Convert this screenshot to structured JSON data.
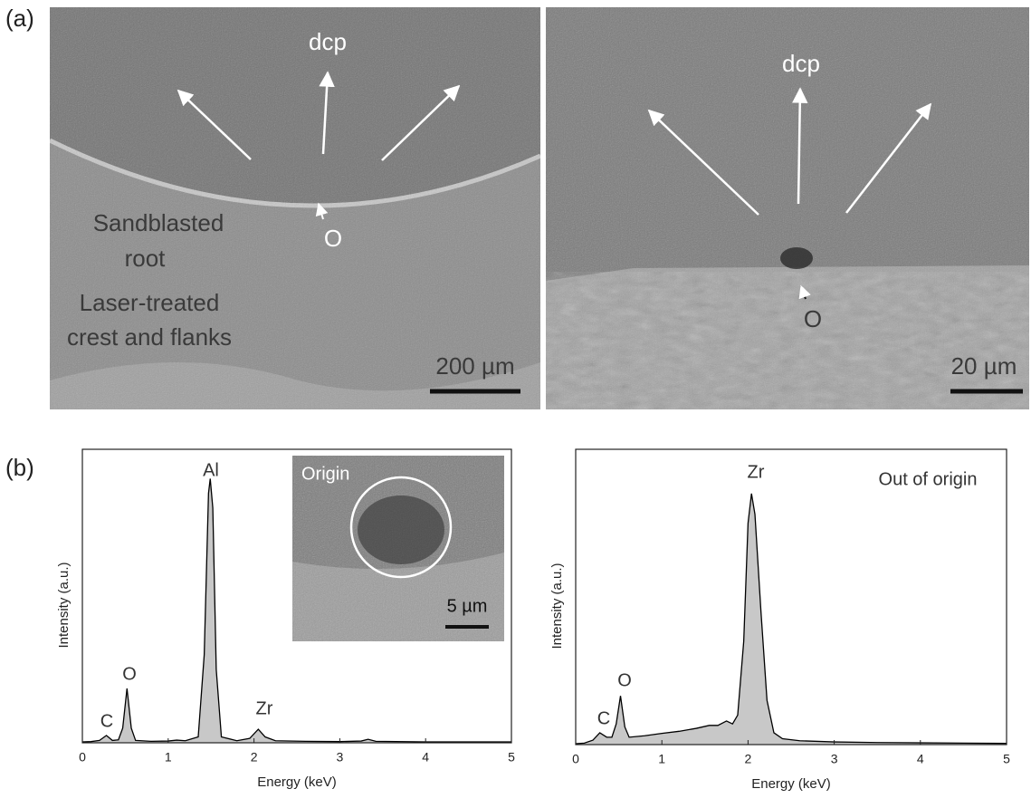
{
  "panel_labels": [
    "(a)",
    "(b)"
  ],
  "sem_images": [
    {
      "labels": [
        "dcp",
        "O",
        "Sandblasted",
        "root",
        "Laser-treated",
        "crest and flanks"
      ],
      "scale_bar": "200 µm"
    },
    {
      "labels": [
        "dcp",
        "O"
      ],
      "scale_bar": "20 µm"
    }
  ],
  "chart_data": [
    {
      "type": "line",
      "xlabel": "Energy (keV)",
      "ylabel": "Intensity (a.u.)",
      "x": [
        0,
        0.1,
        0.2,
        0.28,
        0.35,
        0.42,
        0.47,
        0.52,
        0.57,
        0.62,
        0.8,
        1.0,
        1.1,
        1.2,
        1.35,
        1.42,
        1.47,
        1.49,
        1.52,
        1.56,
        1.62,
        1.8,
        1.95,
        2.05,
        2.13,
        2.25,
        2.6,
        3.0,
        3.25,
        3.33,
        3.42,
        4.0,
        4.5,
        5.0
      ],
      "series": [
        {
          "color": "#000000",
          "fill": "#c8c8c8",
          "values": [
            0.3,
            0.4,
            0.8,
            2.5,
            0.8,
            1,
            5,
            18.5,
            5,
            0.8,
            0.5,
            0.6,
            0.9,
            0.7,
            2,
            30,
            85,
            90,
            80,
            25,
            2,
            0.7,
            1.5,
            4.6,
            2,
            0.7,
            0.5,
            0.4,
            0.6,
            1.2,
            0.5,
            0.3,
            0.3,
            0.3
          ]
        }
      ],
      "xlim": [
        0,
        5
      ],
      "xticks": [
        0,
        1,
        2,
        3,
        4,
        5
      ],
      "ylim": [
        0,
        100
      ],
      "annotations": [
        "C",
        "O",
        "Al",
        "Zr"
      ],
      "inset": {
        "label": "Origin",
        "scale_bar": "5 µm"
      }
    },
    {
      "type": "line",
      "title": "Out of origin",
      "xlabel": "Energy (keV)",
      "ylabel": "Intensity (a.u.)",
      "x": [
        0,
        0.1,
        0.2,
        0.28,
        0.36,
        0.42,
        0.47,
        0.52,
        0.57,
        0.62,
        0.8,
        1.0,
        1.2,
        1.4,
        1.55,
        1.65,
        1.75,
        1.82,
        1.88,
        1.95,
        2.0,
        2.04,
        2.08,
        2.15,
        2.22,
        2.3,
        2.4,
        2.6,
        3.0,
        3.5,
        4.0,
        4.5,
        5.0
      ],
      "series": [
        {
          "color": "#000000",
          "fill": "#c8c8c8",
          "values": [
            0.3,
            0.5,
            1.5,
            4,
            2.5,
            2.5,
            7,
            16.5,
            6,
            2.5,
            3,
            3.8,
            4.5,
            5.5,
            6.5,
            6.5,
            8,
            7,
            10,
            35,
            75,
            85,
            78,
            45,
            15,
            4,
            2,
            1.3,
            0.9,
            0.7,
            0.6,
            0.5,
            0.4
          ]
        }
      ],
      "xlim": [
        0,
        5
      ],
      "xticks": [
        0,
        1,
        2,
        3,
        4,
        5
      ],
      "ylim": [
        0,
        100
      ],
      "annotations": [
        "C",
        "O",
        "Zr"
      ]
    }
  ]
}
